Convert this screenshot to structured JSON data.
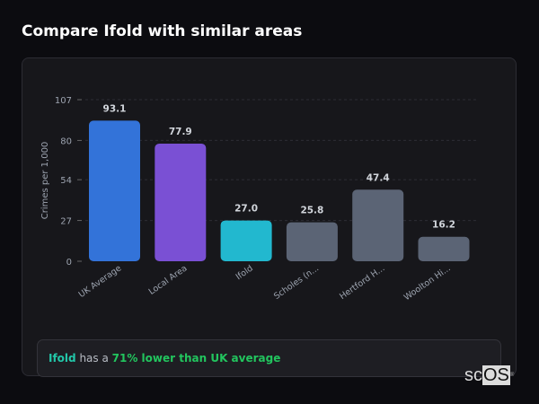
{
  "header": {
    "title": "Compare Ifold with similar areas"
  },
  "chart_data": {
    "type": "bar",
    "title": "",
    "ylabel": "Crimes per 1,000",
    "xlabel": "",
    "ylim": [
      0,
      107
    ],
    "yticks": [
      0,
      27,
      54,
      80,
      107
    ],
    "grid": true,
    "categories": [
      "UK Average",
      "Local Area",
      "Ifold",
      "Scholes (n...",
      "Hertford H...",
      "Woolton Hi..."
    ],
    "values": [
      93.1,
      77.9,
      27.0,
      25.8,
      47.4,
      16.2
    ],
    "value_labels": [
      "93.1",
      "77.9",
      "27.0",
      "25.8",
      "47.4",
      "16.2"
    ],
    "colors": [
      "#3373d9",
      "#7a50d4",
      "#22b8cf",
      "#5b6475",
      "#5b6475",
      "#5b6475"
    ]
  },
  "note": {
    "area": "Ifold",
    "middle": " has a ",
    "highlight": "71% lower than UK average"
  },
  "logo": {
    "text_sc": "sc",
    "text_os": "OS",
    "mark": "®"
  }
}
